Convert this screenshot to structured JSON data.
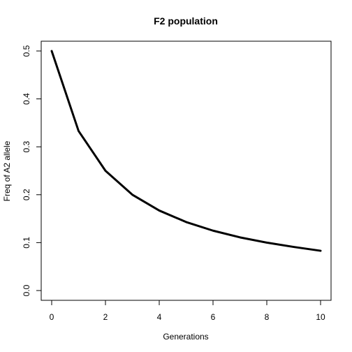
{
  "chart_data": {
    "type": "line",
    "title": "F2 population",
    "xlabel": "Generations",
    "ylabel": "Freq of A2 allele",
    "xlim": [
      0,
      10
    ],
    "ylim": [
      0,
      0.5
    ],
    "x_ticks": [
      0,
      2,
      4,
      6,
      8,
      10
    ],
    "y_ticks": [
      0.0,
      0.1,
      0.2,
      0.3,
      0.4,
      0.5
    ],
    "y_tick_labels": [
      "0.0",
      "0.1",
      "0.2",
      "0.3",
      "0.4",
      "0.5"
    ],
    "grid": false,
    "series": [
      {
        "x": [
          0,
          1,
          2,
          3,
          4,
          5,
          6,
          7,
          8,
          9,
          10
        ],
        "values": [
          0.5,
          0.333,
          0.25,
          0.2,
          0.167,
          0.143,
          0.125,
          0.111,
          0.1,
          0.091,
          0.083
        ],
        "color": "#000000"
      }
    ]
  }
}
